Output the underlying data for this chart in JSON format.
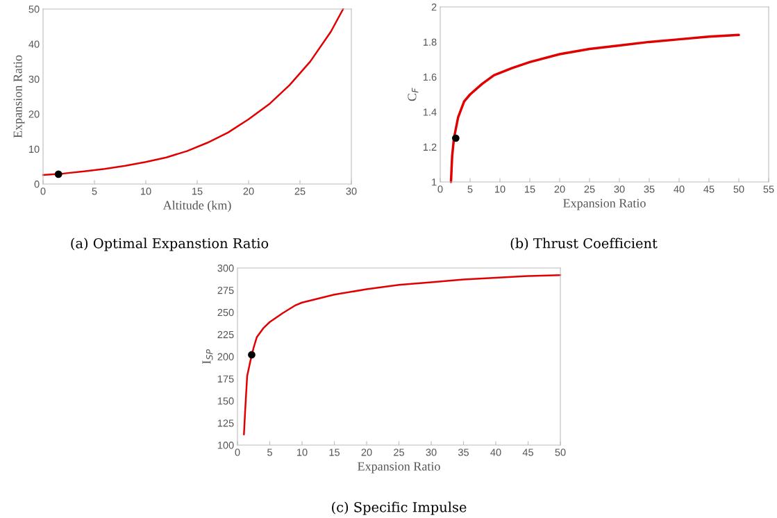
{
  "chart_data": [
    {
      "type": "line",
      "xlabel": "Altitude (km)",
      "ylabel": "Expansion Ratio",
      "annotations": [
        "(a) Optimal Expanstion Ratio"
      ],
      "xlim": [
        0,
        30
      ],
      "xticks": [
        0,
        5,
        10,
        15,
        20,
        25,
        30
      ],
      "ylim": [
        0,
        50
      ],
      "yticks": [
        0,
        10,
        20,
        30,
        40,
        50
      ],
      "grid": false,
      "legend": false,
      "series": [
        {
          "color": "#e00000",
          "x": [
            0,
            2,
            4,
            6,
            8,
            10,
            12,
            14,
            16,
            18,
            20,
            22,
            24,
            26,
            28,
            29.2
          ],
          "values": [
            2.6,
            3.0,
            3.6,
            4.3,
            5.2,
            6.3,
            7.6,
            9.4,
            11.8,
            14.7,
            18.5,
            22.8,
            28.3,
            35,
            43.5,
            50
          ]
        },
        {
          "type": "scatter",
          "color": "#000000",
          "x": [
            1.5
          ],
          "values": [
            2.8
          ]
        }
      ]
    },
    {
      "type": "line",
      "xlabel": "Expansion Ratio",
      "ylabel": "C$_{F}$",
      "annotations": [
        "(b) Thrust Coefficient"
      ],
      "xlim": [
        0,
        55
      ],
      "xticks": [
        0,
        5,
        10,
        15,
        20,
        25,
        30,
        35,
        40,
        45,
        50,
        55
      ],
      "ylim": [
        1,
        2
      ],
      "yticks": [
        1,
        1.2,
        1.4,
        1.6,
        1.8,
        2
      ],
      "grid": false,
      "legend": false,
      "series": [
        {
          "color": "#e00000",
          "x": [
            1.8,
            2.0,
            2.3,
            3,
            4,
            5,
            7,
            9,
            12,
            15,
            20,
            25,
            30,
            35,
            40,
            45,
            50
          ],
          "values": [
            1.0,
            1.15,
            1.25,
            1.37,
            1.46,
            1.5,
            1.56,
            1.61,
            1.65,
            1.685,
            1.73,
            1.76,
            1.78,
            1.8,
            1.815,
            1.83,
            1.84
          ]
        },
        {
          "type": "scatter",
          "color": "#000000",
          "x": [
            2.6
          ],
          "values": [
            1.25
          ]
        }
      ]
    },
    {
      "type": "line",
      "xlabel": "Expansion Ratio",
      "ylabel": "I$_{SP}$",
      "annotations": [
        "(c) Specific Impulse"
      ],
      "xlim": [
        0,
        50
      ],
      "xticks": [
        0,
        5,
        10,
        15,
        20,
        25,
        30,
        35,
        40,
        45,
        50
      ],
      "ylim": [
        100,
        300
      ],
      "yticks": [
        100,
        125,
        150,
        175,
        200,
        225,
        250,
        275,
        300
      ],
      "grid": false,
      "legend": false,
      "series": [
        {
          "color": "#e00000",
          "x": [
            1,
            1.2,
            1.5,
            2,
            2.5,
            3,
            4,
            5,
            7,
            9,
            10,
            15,
            20,
            25,
            30,
            35,
            40,
            45,
            50
          ],
          "values": [
            112,
            140,
            178,
            195,
            210,
            222,
            232,
            239,
            249,
            258,
            261,
            270,
            276,
            281,
            284,
            287,
            289,
            291,
            292
          ]
        },
        {
          "type": "scatter",
          "color": "#000000",
          "x": [
            2.2
          ],
          "values": [
            202
          ]
        }
      ]
    }
  ]
}
